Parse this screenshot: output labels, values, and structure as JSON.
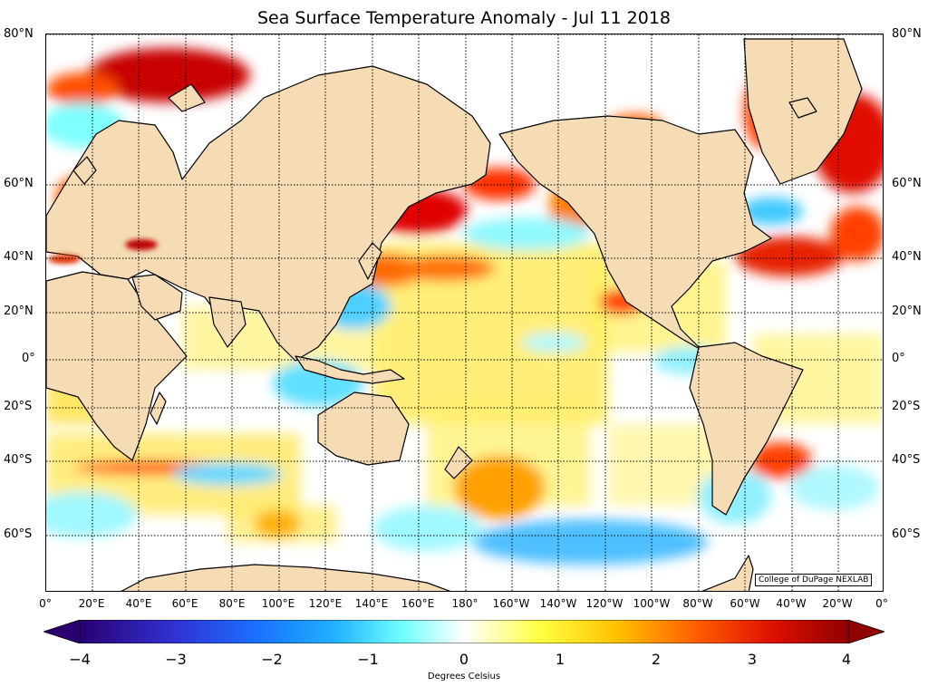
{
  "title": "Sea Surface Temperature Anomaly - Jul 11 2018",
  "map": {
    "lat_labels": [
      "80°N",
      "60°N",
      "40°N",
      "20°N",
      "0°",
      "20°S",
      "40°S",
      "60°S"
    ],
    "lon_labels": [
      "0°",
      "20°E",
      "40°E",
      "60°E",
      "80°E",
      "100°E",
      "120°E",
      "140°E",
      "160°E",
      "180°",
      "160°W",
      "140°W",
      "120°W",
      "100°W",
      "80°W",
      "60°W",
      "40°W",
      "20°W",
      "0°"
    ],
    "credit": "College of DuPage NEXLAB",
    "land_color": "#f5dcb4",
    "coast_color": "#000000"
  },
  "colorbar": {
    "ticks": [
      "−4",
      "−3",
      "−2",
      "−1",
      "0",
      "1",
      "2",
      "3",
      "4"
    ],
    "label": "Degrees Celsius",
    "stops": [
      "#2a0070",
      "#3030d0",
      "#1a70ff",
      "#20b0ff",
      "#70ffff",
      "#ffffff",
      "#ffff40",
      "#ffc000",
      "#ff6000",
      "#e01000",
      "#900000"
    ]
  }
}
